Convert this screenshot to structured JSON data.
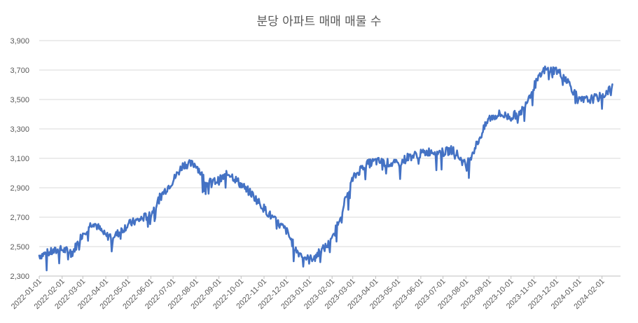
{
  "chart_data": {
    "type": "line",
    "title": "분당 아파트 매매 매물 수",
    "xlabel": "",
    "ylabel": "",
    "ylim": [
      2300,
      3900
    ],
    "y_ticks": [
      "2,300",
      "2,500",
      "2,700",
      "2,900",
      "3,100",
      "3,300",
      "3,500",
      "3,700",
      "3,900"
    ],
    "x_ticks": [
      "2022-01-01",
      "2022-02-01",
      "2022-03-01",
      "2022-04-01",
      "2022-05-01",
      "2022-06-01",
      "2022-07-01",
      "2022-08-01",
      "2022-09-01",
      "2022-10-01",
      "2022-11-01",
      "2022-12-01",
      "2023-01-01",
      "2023-02-01",
      "2023-03-01",
      "2023-04-01",
      "2023-05-01",
      "2023-06-01",
      "2023-07-01",
      "2023-08-01",
      "2023-09-01",
      "2023-10-01",
      "2023-11-01",
      "2023-12-01",
      "2024-01-01",
      "2024-02-01"
    ],
    "grid": "horizontal",
    "line_color": "#4472c4",
    "series": [
      {
        "x": [
          "2022-01-01",
          "2022-01-15",
          "2022-02-01",
          "2022-02-15",
          "2022-03-01",
          "2022-03-15",
          "2022-04-01",
          "2022-04-15",
          "2022-05-01",
          "2022-05-15",
          "2022-06-01",
          "2022-06-15",
          "2022-07-01",
          "2022-07-15",
          "2022-08-01",
          "2022-08-15",
          "2022-09-01",
          "2022-09-15",
          "2022-10-01",
          "2022-10-15",
          "2022-11-01",
          "2022-11-15",
          "2022-12-01",
          "2022-12-15",
          "2023-01-01",
          "2023-01-15",
          "2023-02-01",
          "2023-02-15",
          "2023-03-01",
          "2023-03-15",
          "2023-04-01",
          "2023-04-15",
          "2023-05-01",
          "2023-05-15",
          "2023-06-01",
          "2023-06-15",
          "2023-07-01",
          "2023-07-15",
          "2023-08-01",
          "2023-08-15",
          "2023-09-01",
          "2023-09-15",
          "2023-10-01",
          "2023-10-15",
          "2023-11-01",
          "2023-11-15",
          "2023-12-01",
          "2023-12-15",
          "2024-01-01",
          "2024-01-15",
          "2024-02-01",
          "2024-02-15"
        ],
        "values": [
          2440,
          2460,
          2480,
          2460,
          2590,
          2670,
          2570,
          2580,
          2650,
          2680,
          2720,
          2850,
          2950,
          3060,
          3060,
          2930,
          2950,
          3000,
          2920,
          2860,
          2760,
          2680,
          2610,
          2470,
          2410,
          2460,
          2540,
          2760,
          2960,
          3050,
          3080,
          3070,
          3060,
          3110,
          3130,
          3150,
          3140,
          3160,
          3050,
          3190,
          3370,
          3400,
          3380,
          3420,
          3590,
          3700,
          3700,
          3640,
          3490,
          3500,
          3520,
          3590
        ]
      }
    ]
  }
}
